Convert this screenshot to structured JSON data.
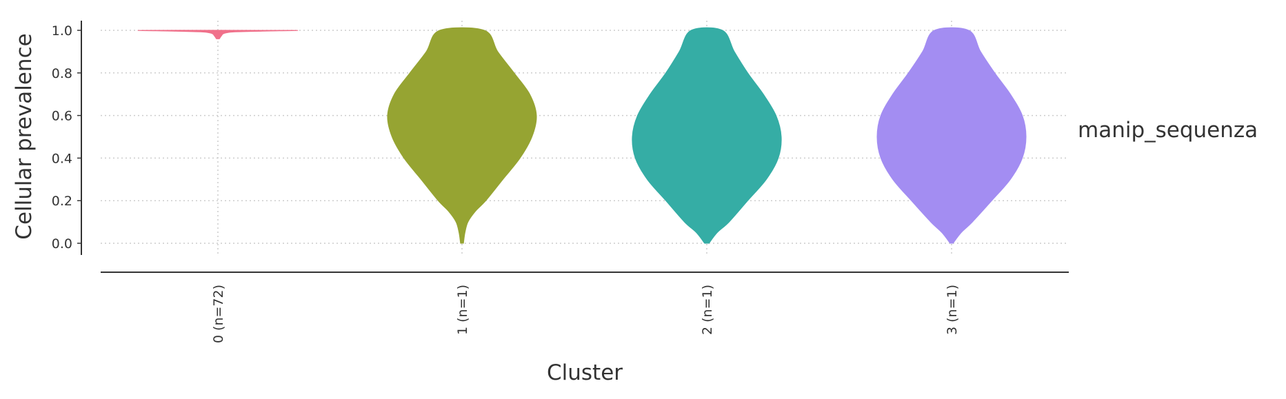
{
  "chart_data": {
    "type": "violin",
    "xlabel": "Cluster",
    "ylabel": "Cellular prevalence",
    "ylim": [
      -0.05,
      1.05
    ],
    "yticks": [
      "0.0",
      "0.2",
      "0.4",
      "0.6",
      "0.8",
      "1.0"
    ],
    "grid": true,
    "side_label": "manip_sequenza",
    "categories": [
      "0 (n=72)",
      "1 (n=1)",
      "2 (n=1)",
      "3 (n=1)"
    ],
    "series": [
      {
        "category": "0 (n=72)",
        "color": "#f0708a",
        "range": [
          0.96,
          1.0
        ],
        "profile": [
          [
            0.96,
            0.02
          ],
          [
            0.975,
            0.05
          ],
          [
            0.985,
            0.08
          ],
          [
            0.992,
            0.2
          ],
          [
            0.996,
            0.6
          ],
          [
            1.0,
            1.0
          ]
        ]
      },
      {
        "category": "1 (n=1)",
        "color": "#96a432",
        "range": [
          0.0,
          1.0
        ],
        "profile": [
          [
            0.0,
            0.02
          ],
          [
            0.05,
            0.04
          ],
          [
            0.1,
            0.08
          ],
          [
            0.15,
            0.18
          ],
          [
            0.2,
            0.32
          ],
          [
            0.3,
            0.55
          ],
          [
            0.4,
            0.78
          ],
          [
            0.5,
            0.94
          ],
          [
            0.6,
            1.0
          ],
          [
            0.7,
            0.91
          ],
          [
            0.8,
            0.7
          ],
          [
            0.9,
            0.48
          ],
          [
            1.0,
            0.3
          ]
        ]
      },
      {
        "category": "2 (n=1)",
        "color": "#35ada5",
        "range": [
          0.0,
          1.0
        ],
        "profile": [
          [
            0.0,
            0.03
          ],
          [
            0.05,
            0.14
          ],
          [
            0.1,
            0.3
          ],
          [
            0.2,
            0.55
          ],
          [
            0.3,
            0.8
          ],
          [
            0.4,
            0.96
          ],
          [
            0.5,
            1.0
          ],
          [
            0.6,
            0.93
          ],
          [
            0.7,
            0.76
          ],
          [
            0.8,
            0.55
          ],
          [
            0.9,
            0.37
          ],
          [
            1.0,
            0.21
          ]
        ]
      },
      {
        "category": "3 (n=1)",
        "color": "#a38df2",
        "range": [
          0.0,
          1.0
        ],
        "profile": [
          [
            0.0,
            0.02
          ],
          [
            0.05,
            0.13
          ],
          [
            0.1,
            0.28
          ],
          [
            0.2,
            0.54
          ],
          [
            0.3,
            0.79
          ],
          [
            0.4,
            0.95
          ],
          [
            0.5,
            1.0
          ],
          [
            0.6,
            0.95
          ],
          [
            0.7,
            0.79
          ],
          [
            0.8,
            0.58
          ],
          [
            0.9,
            0.39
          ],
          [
            1.0,
            0.23
          ]
        ]
      }
    ]
  }
}
